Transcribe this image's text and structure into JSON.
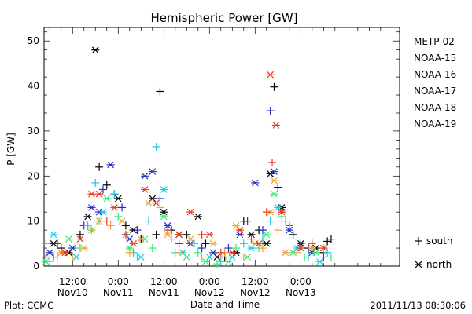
{
  "chart_data": {
    "type": "scatter",
    "title": "Hemispheric Power [GW]",
    "xlabel": "Date and Time",
    "ylabel": "P [GW]",
    "x_unit": "hours from 2011-11-10 00:00",
    "xlim": [
      4.5,
      98
    ],
    "ylim": [
      0,
      53
    ],
    "y_ticks": [
      0,
      10,
      20,
      30,
      40,
      50
    ],
    "x_ticks": [
      {
        "x": 12,
        "time": "12:00",
        "day": "Nov10"
      },
      {
        "x": 24,
        "time": "0:00",
        "day": "Nov11"
      },
      {
        "x": 36,
        "time": "12:00",
        "day": "Nov11"
      },
      {
        "x": 48,
        "time": "0:00",
        "day": "Nov12"
      },
      {
        "x": 60,
        "time": "12:00",
        "day": "Nov12"
      },
      {
        "x": 72,
        "time": "0:00",
        "day": "Nov13"
      }
    ],
    "legend_position": "right",
    "marker_legend": [
      {
        "symbol": "+",
        "label": "south"
      },
      {
        "symbol": "*",
        "label": "north"
      }
    ],
    "series": [
      {
        "name": "METP-02",
        "color": "#000000",
        "points": [
          {
            "x": 5,
            "y": 2,
            "m": "+"
          },
          {
            "x": 7,
            "y": 5,
            "m": "*"
          },
          {
            "x": 9,
            "y": 4,
            "m": "+"
          },
          {
            "x": 11,
            "y": 3,
            "m": "*"
          },
          {
            "x": 14,
            "y": 7,
            "m": "+"
          },
          {
            "x": 16,
            "y": 11,
            "m": "*"
          },
          {
            "x": 18,
            "y": 48,
            "m": "*"
          },
          {
            "x": 19,
            "y": 22,
            "m": "+"
          },
          {
            "x": 21,
            "y": 18,
            "m": "+"
          },
          {
            "x": 23,
            "y": 16,
            "m": "+"
          },
          {
            "x": 24,
            "y": 15,
            "m": "*"
          },
          {
            "x": 26,
            "y": 9,
            "m": "+"
          },
          {
            "x": 28,
            "y": 8,
            "m": "*"
          },
          {
            "x": 30,
            "y": 6,
            "m": "+"
          },
          {
            "x": 33,
            "y": 15,
            "m": "*"
          },
          {
            "x": 34,
            "y": 7,
            "m": "+"
          },
          {
            "x": 35,
            "y": 38.8,
            "m": "+"
          },
          {
            "x": 36,
            "y": 12,
            "m": "*"
          },
          {
            "x": 38,
            "y": 8,
            "m": "+"
          },
          {
            "x": 40,
            "y": 7,
            "m": "*"
          },
          {
            "x": 42,
            "y": 7,
            "m": "+"
          },
          {
            "x": 45,
            "y": 11,
            "m": "*"
          },
          {
            "x": 47,
            "y": 5,
            "m": "+"
          },
          {
            "x": 50,
            "y": 2,
            "m": "*"
          },
          {
            "x": 52,
            "y": 2,
            "m": "+"
          },
          {
            "x": 55,
            "y": 3,
            "m": "*"
          },
          {
            "x": 57,
            "y": 10,
            "m": "+"
          },
          {
            "x": 59,
            "y": 7,
            "m": "*"
          },
          {
            "x": 61,
            "y": 8,
            "m": "+"
          },
          {
            "x": 63,
            "y": 5,
            "m": "*"
          },
          {
            "x": 64,
            "y": 20.5,
            "m": "*"
          },
          {
            "x": 65,
            "y": 39.8,
            "m": "+"
          },
          {
            "x": 66,
            "y": 17.5,
            "m": "+"
          },
          {
            "x": 67,
            "y": 13,
            "m": "*"
          },
          {
            "x": 70,
            "y": 7,
            "m": "+"
          },
          {
            "x": 72,
            "y": 5,
            "m": "*"
          },
          {
            "x": 74,
            "y": 4,
            "m": "+"
          },
          {
            "x": 76,
            "y": 4,
            "m": "*"
          },
          {
            "x": 78,
            "y": 3,
            "m": "+"
          },
          {
            "x": 79,
            "y": 5.5,
            "m": "+"
          },
          {
            "x": 80,
            "y": 6,
            "m": "+"
          }
        ]
      },
      {
        "name": "NOAA-15",
        "color": "#1f2fc8",
        "points": [
          {
            "x": 6,
            "y": 3,
            "m": "*"
          },
          {
            "x": 8,
            "y": 5,
            "m": "+"
          },
          {
            "x": 12,
            "y": 4,
            "m": "*"
          },
          {
            "x": 15,
            "y": 9,
            "m": "+"
          },
          {
            "x": 17,
            "y": 13,
            "m": "*"
          },
          {
            "x": 19,
            "y": 12,
            "m": "*"
          },
          {
            "x": 20,
            "y": 17,
            "m": "+"
          },
          {
            "x": 22,
            "y": 22.5,
            "m": "*"
          },
          {
            "x": 25,
            "y": 13,
            "m": "+"
          },
          {
            "x": 27,
            "y": 6,
            "m": "*"
          },
          {
            "x": 29,
            "y": 8,
            "m": "+"
          },
          {
            "x": 31,
            "y": 20,
            "m": "*"
          },
          {
            "x": 33,
            "y": 21,
            "m": "*"
          },
          {
            "x": 35,
            "y": 15,
            "m": "+"
          },
          {
            "x": 37,
            "y": 9,
            "m": "*"
          },
          {
            "x": 40,
            "y": 5,
            "m": "+"
          },
          {
            "x": 43,
            "y": 5,
            "m": "*"
          },
          {
            "x": 46,
            "y": 4,
            "m": "+"
          },
          {
            "x": 49,
            "y": 3,
            "m": "*"
          },
          {
            "x": 53,
            "y": 4,
            "m": "+"
          },
          {
            "x": 56,
            "y": 7,
            "m": "*"
          },
          {
            "x": 58,
            "y": 10,
            "m": "+"
          },
          {
            "x": 60,
            "y": 18.5,
            "m": "*"
          },
          {
            "x": 62,
            "y": 8,
            "m": "+"
          },
          {
            "x": 64,
            "y": 34.5,
            "m": "+"
          },
          {
            "x": 65,
            "y": 21,
            "m": "*"
          },
          {
            "x": 67,
            "y": 12,
            "m": "+"
          },
          {
            "x": 69,
            "y": 8,
            "m": "*"
          },
          {
            "x": 72,
            "y": 5,
            "m": "+"
          },
          {
            "x": 75,
            "y": 3,
            "m": "*"
          },
          {
            "x": 78,
            "y": 2,
            "m": "+"
          }
        ]
      },
      {
        "name": "NOAA-16",
        "color": "#1ec8e6",
        "points": [
          {
            "x": 5,
            "y": 5,
            "m": "+"
          },
          {
            "x": 7,
            "y": 7,
            "m": "*"
          },
          {
            "x": 10,
            "y": 3,
            "m": "+"
          },
          {
            "x": 13,
            "y": 2,
            "m": "*"
          },
          {
            "x": 16,
            "y": 9,
            "m": "+"
          },
          {
            "x": 18,
            "y": 18.5,
            "m": "+"
          },
          {
            "x": 20,
            "y": 12,
            "m": "*"
          },
          {
            "x": 23,
            "y": 16,
            "m": "+"
          },
          {
            "x": 26,
            "y": 7,
            "m": "*"
          },
          {
            "x": 28,
            "y": 3,
            "m": "+"
          },
          {
            "x": 30,
            "y": 2,
            "m": "*"
          },
          {
            "x": 32,
            "y": 10,
            "m": "+"
          },
          {
            "x": 34,
            "y": 26.5,
            "m": "+"
          },
          {
            "x": 36,
            "y": 17,
            "m": "*"
          },
          {
            "x": 38,
            "y": 6,
            "m": "+"
          },
          {
            "x": 41,
            "y": 3,
            "m": "*"
          },
          {
            "x": 44,
            "y": 5,
            "m": "+"
          },
          {
            "x": 48,
            "y": 2,
            "m": "*"
          },
          {
            "x": 51,
            "y": 1,
            "m": "+"
          },
          {
            "x": 54,
            "y": 2,
            "m": "*"
          },
          {
            "x": 57,
            "y": 5,
            "m": "+"
          },
          {
            "x": 59,
            "y": 4,
            "m": "*"
          },
          {
            "x": 62,
            "y": 6,
            "m": "+"
          },
          {
            "x": 64,
            "y": 10,
            "m": "+"
          },
          {
            "x": 66,
            "y": 13,
            "m": "*"
          },
          {
            "x": 68,
            "y": 10,
            "m": "+"
          },
          {
            "x": 71,
            "y": 4,
            "m": "*"
          },
          {
            "x": 74,
            "y": 2,
            "m": "+"
          },
          {
            "x": 77,
            "y": 1,
            "m": "*"
          },
          {
            "x": 79,
            "y": 3,
            "m": "+"
          }
        ]
      },
      {
        "name": "NOAA-17",
        "color": "#37e873",
        "points": [
          {
            "x": 5,
            "y": 1,
            "m": "*"
          },
          {
            "x": 8,
            "y": 2,
            "m": "+"
          },
          {
            "x": 11,
            "y": 6,
            "m": "*"
          },
          {
            "x": 14,
            "y": 4,
            "m": "+"
          },
          {
            "x": 17,
            "y": 8,
            "m": "*"
          },
          {
            "x": 19,
            "y": 10,
            "m": "+"
          },
          {
            "x": 21,
            "y": 15,
            "m": "*"
          },
          {
            "x": 24,
            "y": 11,
            "m": "+"
          },
          {
            "x": 27,
            "y": 4,
            "m": "*"
          },
          {
            "x": 29,
            "y": 2,
            "m": "+"
          },
          {
            "x": 31,
            "y": 6,
            "m": "*"
          },
          {
            "x": 33,
            "y": 4,
            "m": "+"
          },
          {
            "x": 36,
            "y": 11,
            "m": "*"
          },
          {
            "x": 39,
            "y": 3,
            "m": "+"
          },
          {
            "x": 42,
            "y": 2,
            "m": "*"
          },
          {
            "x": 45,
            "y": 3,
            "m": "+"
          },
          {
            "x": 47,
            "y": 1,
            "m": "*"
          },
          {
            "x": 50,
            "y": 0.5,
            "m": "+"
          },
          {
            "x": 53,
            "y": 1,
            "m": "*"
          },
          {
            "x": 55,
            "y": 4,
            "m": "+"
          },
          {
            "x": 58,
            "y": 2,
            "m": "*"
          },
          {
            "x": 61,
            "y": 4,
            "m": "+"
          },
          {
            "x": 63,
            "y": 7,
            "m": "*"
          },
          {
            "x": 65,
            "y": 16,
            "m": "*"
          },
          {
            "x": 67,
            "y": 11,
            "m": "+"
          },
          {
            "x": 70,
            "y": 3,
            "m": "*"
          },
          {
            "x": 73,
            "y": 2,
            "m": "+"
          },
          {
            "x": 76,
            "y": 3,
            "m": "*"
          },
          {
            "x": 80,
            "y": 2,
            "m": "+"
          }
        ]
      },
      {
        "name": "NOAA-18",
        "color": "#f5a230",
        "points": [
          {
            "x": 6,
            "y": 1,
            "m": "+"
          },
          {
            "x": 9,
            "y": 3,
            "m": "*"
          },
          {
            "x": 12,
            "y": 2,
            "m": "+"
          },
          {
            "x": 15,
            "y": 4,
            "m": "*"
          },
          {
            "x": 17,
            "y": 8,
            "m": "+"
          },
          {
            "x": 19,
            "y": 10,
            "m": "*"
          },
          {
            "x": 22,
            "y": 9,
            "m": "+"
          },
          {
            "x": 25,
            "y": 10,
            "m": "*"
          },
          {
            "x": 27,
            "y": 3,
            "m": "+"
          },
          {
            "x": 30,
            "y": 6,
            "m": "*"
          },
          {
            "x": 32,
            "y": 14,
            "m": "*"
          },
          {
            "x": 35,
            "y": 13,
            "m": "+"
          },
          {
            "x": 37,
            "y": 7,
            "m": "*"
          },
          {
            "x": 40,
            "y": 3,
            "m": "+"
          },
          {
            "x": 43,
            "y": 6,
            "m": "*"
          },
          {
            "x": 46,
            "y": 2,
            "m": "+"
          },
          {
            "x": 49,
            "y": 5,
            "m": "*"
          },
          {
            "x": 52,
            "y": 3,
            "m": "+"
          },
          {
            "x": 55,
            "y": 9,
            "m": "*"
          },
          {
            "x": 57,
            "y": 2,
            "m": "+"
          },
          {
            "x": 60,
            "y": 5,
            "m": "*"
          },
          {
            "x": 62,
            "y": 4,
            "m": "+"
          },
          {
            "x": 64,
            "y": 12,
            "m": "*"
          },
          {
            "x": 65,
            "y": 19,
            "m": "*"
          },
          {
            "x": 66,
            "y": 8,
            "m": "+"
          },
          {
            "x": 68,
            "y": 3,
            "m": "*"
          },
          {
            "x": 71,
            "y": 3,
            "m": "+"
          },
          {
            "x": 75,
            "y": 4,
            "m": "*"
          },
          {
            "x": 78,
            "y": 4,
            "m": "+"
          }
        ]
      },
      {
        "name": "NOAA-19",
        "color": "#e8381a",
        "points": [
          {
            "x": 7,
            "y": 2,
            "m": "+"
          },
          {
            "x": 10,
            "y": 3,
            "m": "*"
          },
          {
            "x": 14,
            "y": 6,
            "m": "*"
          },
          {
            "x": 17,
            "y": 16,
            "m": "*"
          },
          {
            "x": 19,
            "y": 16,
            "m": "*"
          },
          {
            "x": 21,
            "y": 10,
            "m": "+"
          },
          {
            "x": 23,
            "y": 13,
            "m": "*"
          },
          {
            "x": 26,
            "y": 7,
            "m": "+"
          },
          {
            "x": 28,
            "y": 5,
            "m": "*"
          },
          {
            "x": 31,
            "y": 17,
            "m": "*"
          },
          {
            "x": 34,
            "y": 14,
            "m": "*"
          },
          {
            "x": 37,
            "y": 8,
            "m": "+"
          },
          {
            "x": 40,
            "y": 7,
            "m": "*"
          },
          {
            "x": 43,
            "y": 12,
            "m": "*"
          },
          {
            "x": 46,
            "y": 7,
            "m": "+"
          },
          {
            "x": 48,
            "y": 7,
            "m": "*"
          },
          {
            "x": 51,
            "y": 3,
            "m": "+"
          },
          {
            "x": 54,
            "y": 3,
            "m": "*"
          },
          {
            "x": 56,
            "y": 8,
            "m": "*"
          },
          {
            "x": 59,
            "y": 6,
            "m": "+"
          },
          {
            "x": 61,
            "y": 5,
            "m": "*"
          },
          {
            "x": 63,
            "y": 12,
            "m": "+"
          },
          {
            "x": 64,
            "y": 42.5,
            "m": "*"
          },
          {
            "x": 64.5,
            "y": 23,
            "m": "+"
          },
          {
            "x": 65.5,
            "y": 31.3,
            "m": "*"
          },
          {
            "x": 67,
            "y": 12,
            "m": "*"
          },
          {
            "x": 69,
            "y": 9,
            "m": "+"
          },
          {
            "x": 72,
            "y": 4,
            "m": "*"
          },
          {
            "x": 75,
            "y": 5,
            "m": "+"
          },
          {
            "x": 78,
            "y": 4,
            "m": "*"
          }
        ]
      }
    ]
  },
  "footer": {
    "plot_credit": "Plot: CCMC",
    "timestamp": "2011/11/13 08:30:06"
  }
}
